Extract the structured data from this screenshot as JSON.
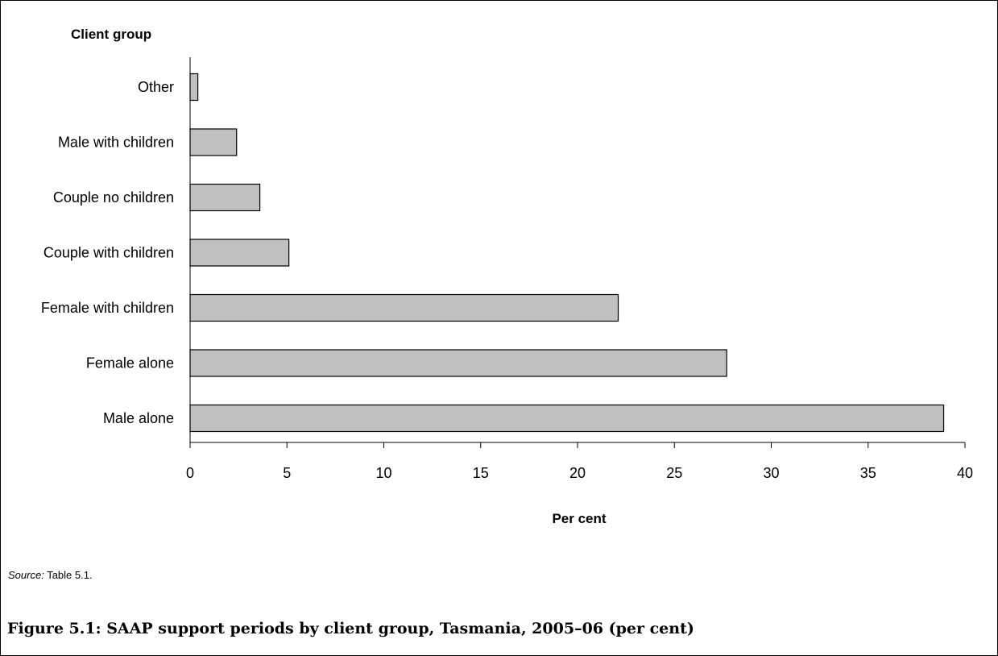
{
  "chart_data": {
    "type": "bar",
    "orientation": "horizontal",
    "categories": [
      "Male alone",
      "Female alone",
      "Female with children",
      "Couple with children",
      "Couple no children",
      "Male with children",
      "Other"
    ],
    "values": [
      38.9,
      27.7,
      22.1,
      5.1,
      3.6,
      2.4,
      0.4
    ],
    "xlabel": "Per cent",
    "ylabel": "Client group",
    "xlim": [
      0,
      40
    ],
    "xticks": [
      "0",
      "5",
      "10",
      "15",
      "20",
      "25",
      "30",
      "35",
      "40"
    ],
    "grid": false,
    "legend": "none",
    "bar_color": "#c0c0c0",
    "bar_outline_color": "#000000"
  },
  "source": {
    "prefix": "Source:",
    "text": " Table 5.1."
  },
  "caption": "Figure 5.1: SAAP support periods by client group, Tasmania, 2005–06 (per cent)"
}
